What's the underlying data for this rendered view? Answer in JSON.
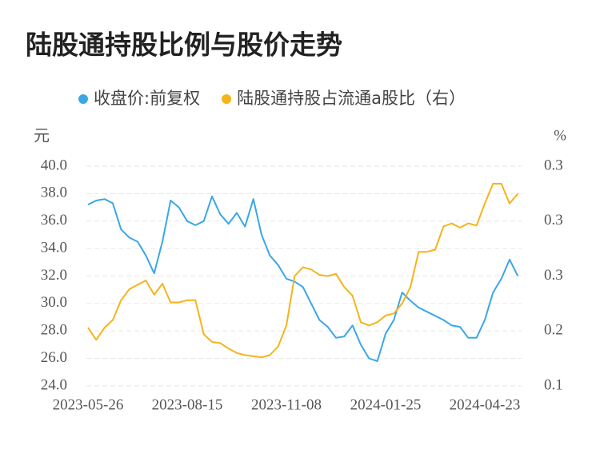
{
  "chart_data": {
    "type": "line",
    "title": "陆股通持股比例与股价走势",
    "y_unit": "元",
    "y2_unit": "%",
    "categories": [
      "2023-05-26",
      null,
      null,
      null,
      null,
      null,
      null,
      null,
      null,
      null,
      null,
      null,
      "2023-08-15",
      null,
      null,
      null,
      null,
      null,
      null,
      null,
      null,
      null,
      null,
      null,
      "2023-11-08",
      null,
      null,
      null,
      null,
      null,
      null,
      null,
      null,
      null,
      null,
      null,
      "2024-01-25",
      null,
      null,
      null,
      null,
      null,
      null,
      null,
      null,
      null,
      null,
      null,
      "2024-04-23",
      null,
      null,
      null,
      null
    ],
    "series": [
      {
        "name": "收盘价:前复权",
        "color": "#3aa7e6",
        "axis": "y",
        "values": [
          37.2,
          37.5,
          37.6,
          37.3,
          35.4,
          34.8,
          34.5,
          33.5,
          32.2,
          34.5,
          37.5,
          37,
          36,
          35.7,
          36,
          37.8,
          36.5,
          35.8,
          36.6,
          35.6,
          37.6,
          35,
          33.5,
          32.8,
          31.8,
          31.6,
          31.2,
          30,
          28.8,
          28.3,
          27.5,
          27.6,
          28.4,
          27,
          26,
          25.8,
          27.8,
          28.8,
          30.8,
          30.2,
          29.7,
          29.4,
          29.1,
          28.8,
          28.4,
          28.3,
          27.5,
          27.5,
          28.8,
          30.8,
          31.8,
          33.2,
          32
        ]
      },
      {
        "name": "陆股通持股占流通a股比（右）",
        "color": "#f5b31c",
        "axis": "y2",
        "values": [
          0.203,
          0.192,
          0.203,
          0.21,
          0.228,
          0.238,
          0.242,
          0.246,
          0.233,
          0.243,
          0.226,
          0.226,
          0.228,
          0.228,
          0.197,
          0.19,
          0.189,
          0.184,
          0.18,
          0.178,
          0.177,
          0.176,
          0.178,
          0.186,
          0.205,
          0.25,
          0.258,
          0.256,
          0.251,
          0.25,
          0.252,
          0.24,
          0.232,
          0.208,
          0.205,
          0.208,
          0.214,
          0.216,
          0.225,
          0.24,
          0.272,
          0.272,
          0.274,
          0.295,
          0.298,
          0.294,
          0.298,
          0.296,
          0.316,
          0.334,
          0.334,
          0.316,
          0.325
        ]
      }
    ],
    "ylim": [
      24,
      40
    ],
    "yticks": [
      {
        "value": 24,
        "label": "24.0"
      },
      {
        "value": 26,
        "label": "26.0"
      },
      {
        "value": 28,
        "label": "28.0"
      },
      {
        "value": 30,
        "label": "30.0"
      },
      {
        "value": 32,
        "label": "32.0"
      },
      {
        "value": 34,
        "label": "34.0"
      },
      {
        "value": 36,
        "label": "36.0"
      },
      {
        "value": 38,
        "label": "38.0"
      },
      {
        "value": 40,
        "label": "40.0"
      }
    ],
    "y2lim": [
      0.15,
      0.35
    ],
    "y2ticks": [
      {
        "value": 0.15,
        "label": "0.1"
      },
      {
        "value": 0.2,
        "label": "0.2"
      },
      {
        "value": 0.25,
        "label": "0.3"
      },
      {
        "value": 0.3,
        "label": "0.3"
      },
      {
        "value": 0.35,
        "label": "0.3"
      }
    ],
    "grid": true
  }
}
